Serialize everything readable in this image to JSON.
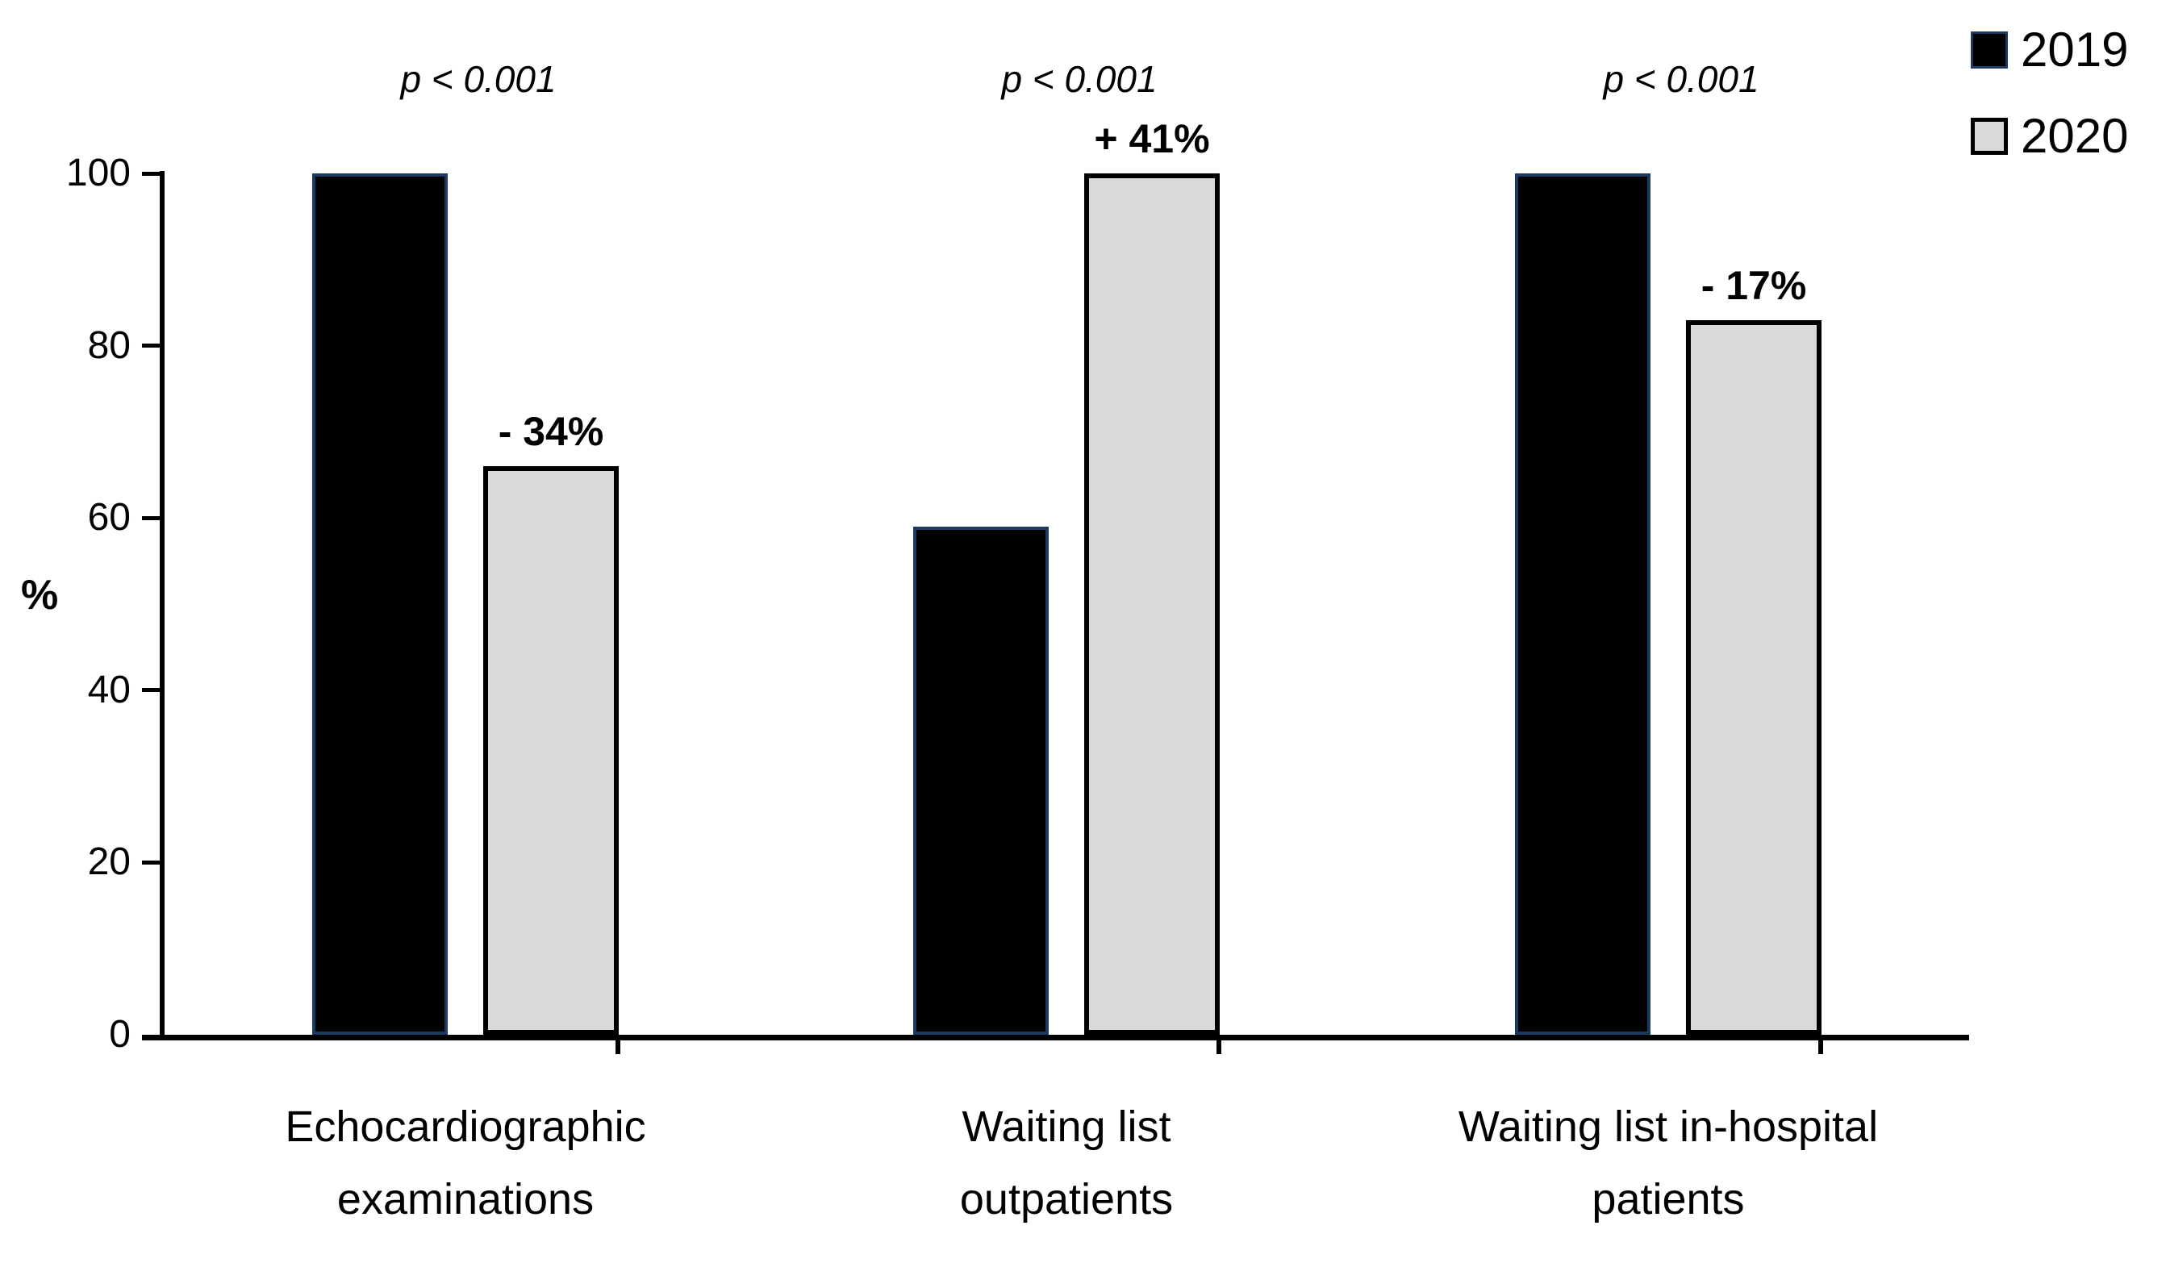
{
  "chart_data": {
    "type": "bar",
    "title": "",
    "categories": [
      "Echocardiographic examinations",
      "Waiting list outpatients",
      "Waiting list in-hospital patients"
    ],
    "category_label_lines": [
      [
        "Echocardiographic",
        "examinations"
      ],
      [
        "Waiting list",
        "outpatients"
      ],
      [
        "Waiting list in-hospital",
        "patients"
      ]
    ],
    "series": [
      {
        "name": "2019",
        "color": "#000000",
        "values": [
          100,
          59,
          100
        ]
      },
      {
        "name": "2020",
        "color": "#d9d9d9",
        "values": [
          66,
          100,
          83
        ]
      }
    ],
    "p_values": [
      "p < 0.001",
      "p < 0.001",
      "p < 0.001"
    ],
    "change_labels": [
      "- 34%",
      "+ 41%",
      "- 17%"
    ],
    "xlabel": "",
    "ylabel": "%",
    "ylim": [
      0,
      100
    ],
    "yticks": [
      0,
      20,
      40,
      60,
      80,
      100
    ],
    "grid": false,
    "legend_position": "top-right",
    "colors": {
      "series_2019": "#000000",
      "series_2019_edge": "#1b3a5f",
      "series_2020": "#d9d9d9",
      "bar_border": "#000000",
      "axis": "#000000",
      "text": "#000000",
      "background": "#ffffff"
    }
  }
}
